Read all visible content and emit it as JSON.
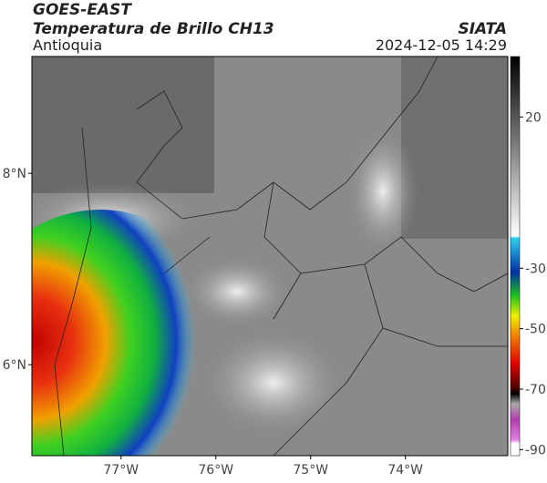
{
  "header": {
    "title": "GOES-EAST",
    "subtitle": "Temperatura de Brillo CH13",
    "region": "Antioquia",
    "source": "SIATA",
    "timestamp": "2024-12-05 14:29"
  },
  "map": {
    "xlim": [
      -77.94,
      -72.92
    ],
    "ylim": [
      5.05,
      9.22
    ],
    "xticks": [
      {
        "value": -77,
        "label": "77°W"
      },
      {
        "value": -76,
        "label": "76°W"
      },
      {
        "value": -75,
        "label": "75°W"
      },
      {
        "value": -74,
        "label": "74°W"
      }
    ],
    "yticks": [
      {
        "value": 8,
        "label": "8°N"
      },
      {
        "value": 6,
        "label": "6°N"
      }
    ]
  },
  "colorbar": {
    "limits": [
      -92,
      40
    ],
    "ticks": [
      20,
      -30,
      -50,
      -70,
      -90
    ]
  }
}
